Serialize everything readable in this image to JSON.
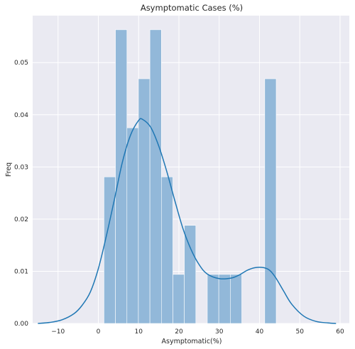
{
  "chart_data": {
    "type": "bar",
    "title": "Asymptomatic Cases (%)",
    "xlabel": "Asymptomatic(%)",
    "ylabel": "Freq",
    "xlim": [
      -16.3,
      62.3
    ],
    "ylim": [
      0,
      0.059
    ],
    "x_ticks": [
      -10,
      0,
      10,
      20,
      30,
      40,
      50,
      60
    ],
    "y_ticks": [
      0.0,
      0.01,
      0.02,
      0.03,
      0.04,
      0.05
    ],
    "x_tick_labels": [
      "−10",
      "0",
      "10",
      "20",
      "30",
      "40",
      "50",
      "60"
    ],
    "y_tick_labels": [
      "0.00",
      "0.01",
      "0.02",
      "0.03",
      "0.04",
      "0.05"
    ],
    "grid": true,
    "colors": {
      "background": "#eaeaf2",
      "grid": "#ffffff",
      "bar": "#92b8d9",
      "bar_edge": "#ffffff",
      "kde": "#1f77b4"
    },
    "histogram": {
      "bin_width": 2.85,
      "bins": [
        {
          "x0": 1.4,
          "value": 0.0281
        },
        {
          "x0": 4.25,
          "value": 0.0563
        },
        {
          "x0": 7.1,
          "value": 0.0375
        },
        {
          "x0": 9.95,
          "value": 0.0469
        },
        {
          "x0": 12.8,
          "value": 0.0563
        },
        {
          "x0": 15.65,
          "value": 0.0281
        },
        {
          "x0": 18.5,
          "value": 0.0094
        },
        {
          "x0": 21.35,
          "value": 0.0188
        },
        {
          "x0": 24.2,
          "value": 0.0
        },
        {
          "x0": 27.05,
          "value": 0.0094
        },
        {
          "x0": 29.9,
          "value": 0.0094
        },
        {
          "x0": 32.75,
          "value": 0.0094
        },
        {
          "x0": 35.6,
          "value": 0.0
        },
        {
          "x0": 38.45,
          "value": 0.0
        },
        {
          "x0": 41.3,
          "value": 0.0469
        }
      ]
    },
    "kde": {
      "x": [
        -15,
        -12,
        -9,
        -6,
        -4,
        -2,
        0,
        2,
        4,
        6,
        8,
        10,
        11,
        13,
        15,
        17,
        19,
        21,
        23,
        25,
        27,
        30,
        33,
        35,
        37,
        39,
        41,
        42.5,
        44,
        46,
        48,
        51,
        54,
        57,
        59
      ],
      "y": [
        0.0,
        0.0002,
        0.0007,
        0.0019,
        0.0035,
        0.006,
        0.0105,
        0.0168,
        0.0238,
        0.031,
        0.0361,
        0.0389,
        0.0391,
        0.0376,
        0.034,
        0.0291,
        0.0235,
        0.0182,
        0.0142,
        0.0113,
        0.0095,
        0.0086,
        0.0087,
        0.0093,
        0.0102,
        0.0107,
        0.0107,
        0.0102,
        0.0088,
        0.0062,
        0.0037,
        0.0014,
        0.0004,
        0.0001,
        0.0
      ]
    }
  }
}
